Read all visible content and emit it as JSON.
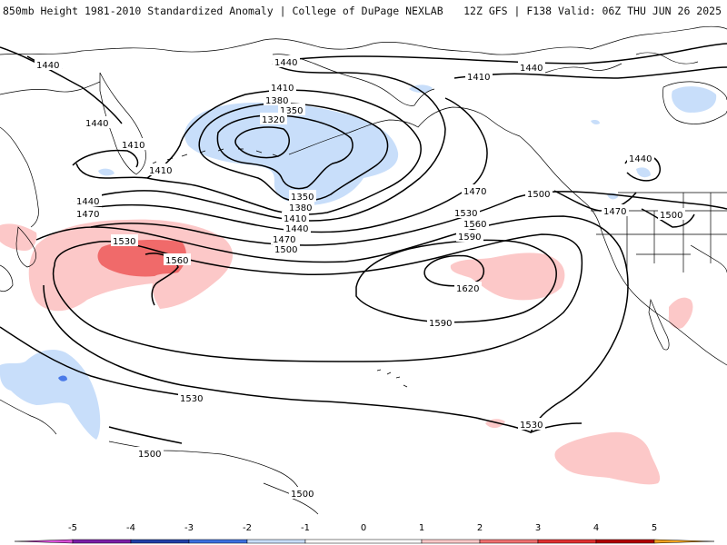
{
  "header": {
    "title_left": "850mb Height 1981-2010 Standardized Anomaly | College of DuPage NEXLAB",
    "title_right": "12Z GFS | F138 Valid: 06Z THU JUN 26 2025"
  },
  "contour_labels": [
    "1440",
    "1440",
    "1440",
    "1410",
    "1410",
    "1410",
    "1380",
    "1350",
    "1320",
    "1350",
    "1380",
    "1410",
    "1440",
    "1470",
    "1500",
    "1530",
    "1560",
    "1590",
    "1620",
    "1590",
    "1530",
    "1560",
    "1470",
    "1470",
    "1500",
    "1530",
    "1530",
    "1500",
    "1500",
    "1440",
    "1470",
    "1500",
    "1410",
    "1440",
    "1440"
  ],
  "colorbar": {
    "ticks": [
      "-5",
      "-4",
      "-3",
      "-2",
      "-1",
      "0",
      "1",
      "2",
      "3",
      "4",
      "5"
    ],
    "colors": {
      "neg5": "#d94fd9",
      "neg4": "#7a1fa8",
      "neg3": "#1f3fa8",
      "neg2": "#3a6fe0",
      "neg1_strong": "#6f9bf0",
      "neg1": "#c8defa",
      "zero": "#ffffff",
      "pos1": "#fcc8c8",
      "pos2": "#f07070",
      "pos3": "#e03030",
      "pos4": "#b00000",
      "pos5": "#f2a21f"
    }
  },
  "colors": {
    "anomaly_neg_light": "#c8defa",
    "anomaly_neg_mid": "#4a7ae8",
    "anomaly_pos_light": "#fcc8c8",
    "anomaly_pos_mid": "#f06a6a",
    "contour": "#000000",
    "coast": "#000000"
  }
}
